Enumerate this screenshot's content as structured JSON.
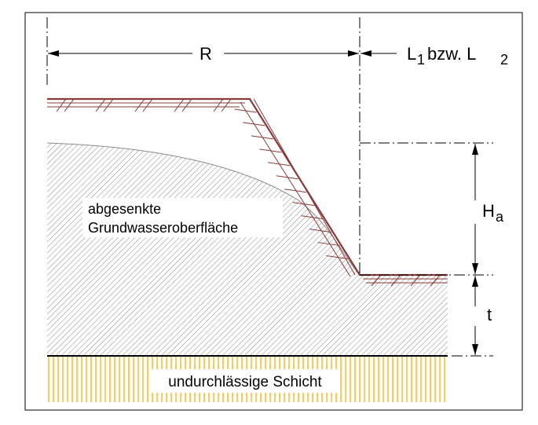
{
  "labels": {
    "radius": "R",
    "length_prefix": "L",
    "length_sub1": "1",
    "length_mid": "bzw. L",
    "length_sub2": "2",
    "drawdown_height": "H",
    "drawdown_height_sub": "a",
    "thickness": "t",
    "water_surface_line1": "abgesenkte",
    "water_surface_line2": "Grundwasseroberfläche",
    "impermeable_layer": "undurchlässige Schicht"
  },
  "colors": {
    "ground_line": "#8b3a3a",
    "groundwater_hatch": "#8c8c8c",
    "impermeable_hatch": "#f5b400",
    "frame": "#000000"
  }
}
